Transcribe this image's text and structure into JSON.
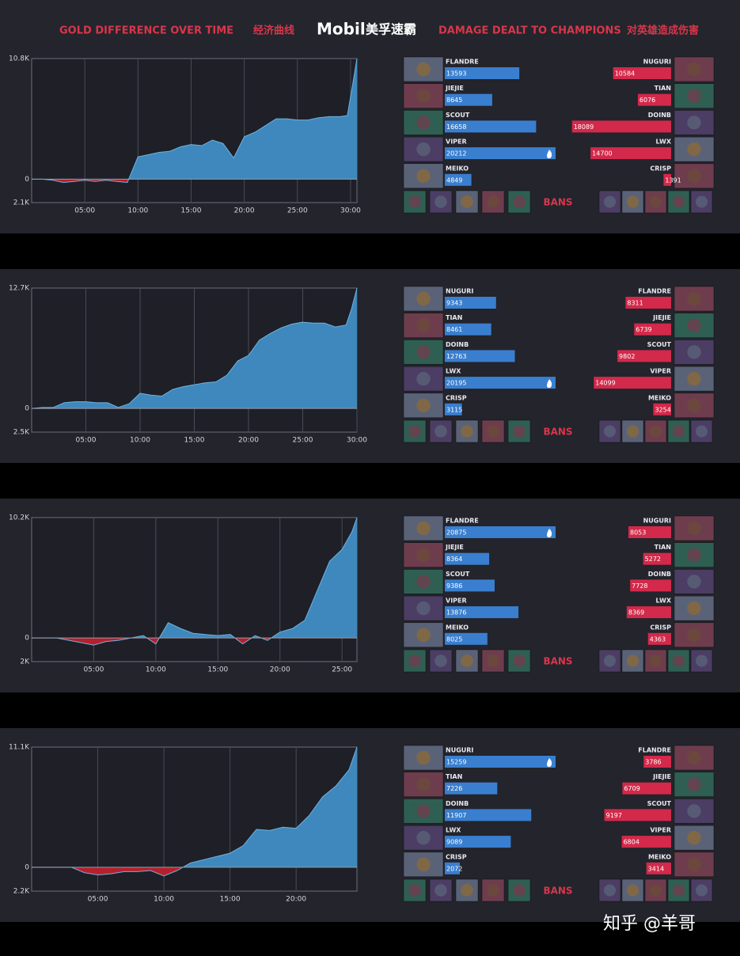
{
  "header": {
    "gold_title": "GOLD DIFFERENCE OVER TIME",
    "gold_title_cn": "经济曲线",
    "brand": "Mobil",
    "brand_cn": "美孚速霸",
    "damage_title": "DAMAGE DEALT TO CHAMPIONS",
    "damage_title_cn": "对英雄造成伤害"
  },
  "bans_labels": [
    "BANS",
    "BANS",
    "BANS",
    "BANS"
  ],
  "watermark": "知乎 @羊哥",
  "chart_data": [
    {
      "type": "area",
      "color": "#3f88bd",
      "negative_color": "#b5202c",
      "x": [
        0,
        1,
        2,
        3,
        4,
        5,
        6,
        7,
        8,
        9,
        10,
        11,
        12,
        13,
        14,
        15,
        16,
        17,
        18,
        19,
        20,
        21,
        22,
        23,
        24,
        25,
        26,
        27,
        28,
        29,
        29.7,
        30.2,
        30.6
      ],
      "values": [
        0,
        0,
        -0.1,
        -0.3,
        -0.2,
        -0.1,
        -0.2,
        -0.1,
        -0.2,
        -0.3,
        2.0,
        2.2,
        2.4,
        2.5,
        2.9,
        3.1,
        3.0,
        3.5,
        3.2,
        1.9,
        3.8,
        4.2,
        4.8,
        5.4,
        5.4,
        5.3,
        5.3,
        5.5,
        5.6,
        5.6,
        5.7,
        8.5,
        10.8
      ],
      "xlim": [
        0,
        30.6
      ],
      "ylim": [
        -2.1,
        10.8
      ],
      "xticks": [
        {
          "value": 5,
          "label": "05:00"
        },
        {
          "value": 10,
          "label": "10:00"
        },
        {
          "value": 15,
          "label": "15:00"
        },
        {
          "value": 20,
          "label": "20:00"
        },
        {
          "value": 25,
          "label": "25:00"
        },
        {
          "value": 30,
          "label": "30:00"
        }
      ],
      "yticks": [
        {
          "value": 10.8,
          "label": "10.8K"
        },
        0,
        {
          "value": -2.1,
          "label": "2.1K"
        }
      ]
    },
    {
      "type": "hbar",
      "side": "left",
      "color": "#3a7fcf",
      "categories": [
        "FLANDRE",
        "JIEJIE",
        "SCOUT",
        "VIPER",
        "MEIKO"
      ],
      "values": [
        13593,
        8645,
        16658,
        20212,
        4849
      ]
    },
    {
      "type": "hbar",
      "side": "right",
      "color": "#d3294a",
      "categories": [
        "NUGURI",
        "TIAN",
        "DOINB",
        "LWX",
        "CRISP"
      ],
      "values": [
        10584,
        6076,
        18089,
        14700,
        1391
      ]
    },
    {
      "type": "area",
      "color": "#3f88bd",
      "negative_color": "#b5202c",
      "x": [
        0,
        1,
        2,
        3,
        4,
        5,
        6,
        7,
        8,
        9,
        10,
        11,
        12,
        13,
        14,
        15,
        16,
        17,
        18,
        19,
        20,
        21,
        22,
        23,
        24,
        25,
        26,
        27,
        28,
        29,
        29.5,
        30
      ],
      "values": [
        0,
        0.1,
        0.1,
        0.6,
        0.7,
        0.7,
        0.6,
        0.6,
        0.1,
        0.5,
        1.6,
        1.4,
        1.3,
        2.0,
        2.3,
        2.5,
        2.7,
        2.8,
        3.5,
        5.0,
        5.6,
        7.2,
        7.9,
        8.5,
        8.9,
        9.1,
        9.0,
        9.0,
        8.6,
        8.8,
        10.5,
        12.7
      ],
      "xlim": [
        0,
        30
      ],
      "ylim": [
        -2.5,
        12.7
      ],
      "xticks": [
        {
          "value": 5,
          "label": "05:00"
        },
        {
          "value": 10,
          "label": "10:00"
        },
        {
          "value": 15,
          "label": "15:00"
        },
        {
          "value": 20,
          "label": "20:00"
        },
        {
          "value": 25,
          "label": "25:00"
        },
        {
          "value": 30,
          "label": "30:00"
        }
      ],
      "yticks": [
        {
          "value": 12.7,
          "label": "12.7K"
        },
        0,
        {
          "value": -2.5,
          "label": "2.5K"
        }
      ]
    },
    {
      "type": "hbar",
      "side": "left",
      "color": "#3a7fcf",
      "categories": [
        "NUGURI",
        "TIAN",
        "DOINB",
        "LWX",
        "CRISP"
      ],
      "values": [
        9343,
        8461,
        12763,
        20195,
        3115
      ]
    },
    {
      "type": "hbar",
      "side": "right",
      "color": "#d3294a",
      "categories": [
        "FLANDRE",
        "JIEJIE",
        "SCOUT",
        "VIPER",
        "MEIKO"
      ],
      "values": [
        8311,
        6739,
        9802,
        14099,
        3254
      ]
    },
    {
      "type": "area",
      "color": "#3f88bd",
      "negative_color": "#b5202c",
      "x": [
        0,
        1,
        2,
        3,
        4,
        5,
        6,
        7,
        8,
        9,
        10,
        11,
        12,
        13,
        14,
        15,
        16,
        17,
        18,
        19,
        20,
        21,
        22,
        23,
        24,
        25,
        25.8,
        26.2
      ],
      "values": [
        0,
        0,
        0,
        -0.2,
        -0.4,
        -0.6,
        -0.3,
        -0.2,
        0.0,
        0.2,
        -0.5,
        1.3,
        0.8,
        0.4,
        0.3,
        0.2,
        0.3,
        -0.5,
        0.2,
        -0.2,
        0.5,
        0.8,
        1.5,
        4.0,
        6.5,
        7.5,
        9.0,
        10.2
      ],
      "xlim": [
        0,
        26.2
      ],
      "ylim": [
        -2,
        10.2
      ],
      "xticks": [
        {
          "value": 5,
          "label": "05:00"
        },
        {
          "value": 10,
          "label": "10:00"
        },
        {
          "value": 15,
          "label": "15:00"
        },
        {
          "value": 20,
          "label": "20:00"
        },
        {
          "value": 25,
          "label": "25:00"
        }
      ],
      "yticks": [
        {
          "value": 10.2,
          "label": "10.2K"
        },
        0,
        {
          "value": -2,
          "label": "2K"
        }
      ]
    },
    {
      "type": "hbar",
      "side": "left",
      "color": "#3a7fcf",
      "categories": [
        "FLANDRE",
        "JIEJIE",
        "SCOUT",
        "VIPER",
        "MEIKO"
      ],
      "values": [
        20875,
        8364,
        9386,
        13876,
        8025
      ]
    },
    {
      "type": "hbar",
      "side": "right",
      "color": "#d3294a",
      "categories": [
        "NUGURI",
        "TIAN",
        "DOINB",
        "LWX",
        "CRISP"
      ],
      "values": [
        8053,
        5272,
        7728,
        8369,
        4363
      ]
    },
    {
      "type": "area",
      "color": "#3f88bd",
      "negative_color": "#b5202c",
      "x": [
        0,
        1,
        2,
        3,
        4,
        5,
        6,
        7,
        8,
        9,
        10,
        11,
        12,
        13,
        14,
        15,
        16,
        17,
        18,
        19,
        20,
        21,
        22,
        23,
        24,
        24.6
      ],
      "values": [
        0,
        0,
        0,
        0,
        -0.5,
        -0.7,
        -0.6,
        -0.4,
        -0.4,
        -0.3,
        -0.8,
        -0.3,
        0.4,
        0.7,
        1.0,
        1.3,
        2.0,
        3.5,
        3.4,
        3.7,
        3.6,
        4.8,
        6.5,
        7.5,
        9.0,
        11.1
      ],
      "xlim": [
        0,
        24.6
      ],
      "ylim": [
        -2.2,
        11.1
      ],
      "xticks": [
        {
          "value": 5,
          "label": "05:00"
        },
        {
          "value": 10,
          "label": "10:00"
        },
        {
          "value": 15,
          "label": "15:00"
        },
        {
          "value": 20,
          "label": "20:00"
        }
      ],
      "yticks": [
        {
          "value": 11.1,
          "label": "11.1K"
        },
        0,
        {
          "value": -2.2,
          "label": "2.2K"
        }
      ]
    },
    {
      "type": "hbar",
      "side": "left",
      "color": "#3a7fcf",
      "categories": [
        "NUGURI",
        "TIAN",
        "DOINB",
        "LWX",
        "CRISP"
      ],
      "values": [
        15259,
        7226,
        11907,
        9089,
        2072
      ]
    },
    {
      "type": "hbar",
      "side": "right",
      "color": "#d3294a",
      "categories": [
        "FLANDRE",
        "JIEJIE",
        "SCOUT",
        "VIPER",
        "MEIKO"
      ],
      "values": [
        3786,
        6709,
        9197,
        6804,
        3414
      ]
    }
  ]
}
